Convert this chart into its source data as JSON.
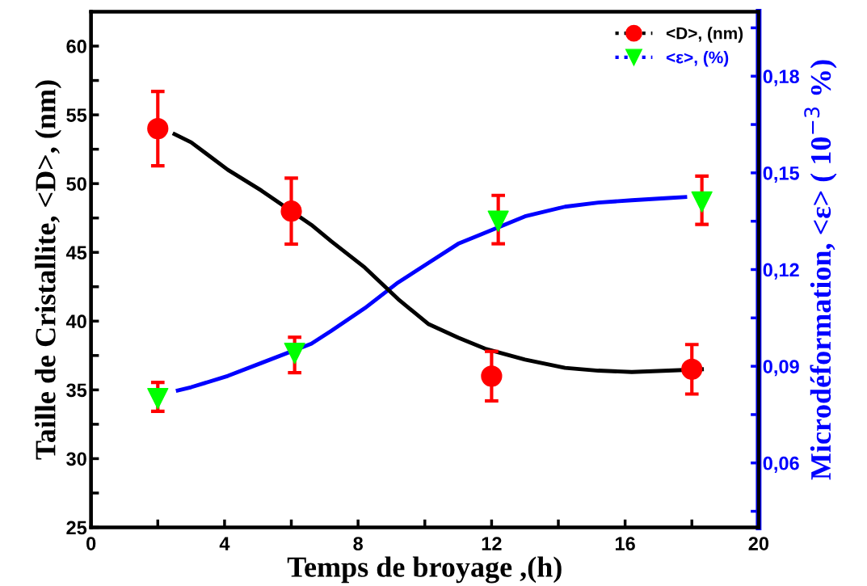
{
  "chart_data": {
    "type": "scatter",
    "xlabel": "Temps de broyage ,(h)",
    "ylabel": "Taille de Cristallite, <D>, (nm)",
    "y2label": "Microdéformation, <ε> ( 10$^{−3}$ %)",
    "xlim": [
      0,
      20
    ],
    "xticks": [
      0,
      {
        "value": 2,
        "label": null
      },
      4,
      {
        "value": 6,
        "label": null
      },
      8,
      {
        "value": 10,
        "label": null
      },
      12,
      {
        "value": 14,
        "label": null
      },
      16,
      {
        "value": 18,
        "label": null
      },
      20
    ],
    "ylim": [
      25,
      62.5
    ],
    "yticks": [
      25,
      {
        "value": 27.5,
        "label": null
      },
      30,
      {
        "value": 32.5,
        "label": null
      },
      35,
      {
        "value": 37.5,
        "label": null
      },
      40,
      {
        "value": 42.5,
        "label": null
      },
      45,
      {
        "value": 47.5,
        "label": null
      },
      50,
      {
        "value": 52.5,
        "label": null
      },
      55,
      {
        "value": 57.5,
        "label": null
      },
      60
    ],
    "y2lim": [
      0.04,
      0.2
    ],
    "y2ticks": [
      {
        "value": 0.045,
        "label": null
      },
      {
        "value": 0.06,
        "label": "0,06"
      },
      {
        "value": 0.075,
        "label": null
      },
      {
        "value": 0.09,
        "label": "0,09"
      },
      {
        "value": 0.105,
        "label": null
      },
      {
        "value": 0.12,
        "label": "0,12"
      },
      {
        "value": 0.135,
        "label": null
      },
      {
        "value": 0.15,
        "label": "0,15"
      },
      {
        "value": 0.165,
        "label": null
      },
      {
        "value": 0.18,
        "label": "0,18"
      },
      {
        "value": 0.195,
        "label": null
      }
    ],
    "legend": "top right",
    "grid": false,
    "series": [
      {
        "type": "line",
        "color": "#000000",
        "marker": "none",
        "x": [
          2.5,
          3,
          4.1,
          5.1,
          6.6,
          7.2,
          8.2,
          9.2,
          10.1,
          11,
          11.8,
          13,
          14.2,
          15.2,
          16.2,
          17.3,
          18.3
        ],
        "values": [
          53.6,
          53,
          51,
          49.5,
          47,
          45.8,
          43.9,
          41.6,
          39.8,
          38.8,
          38,
          37.2,
          36.6,
          36.4,
          36.3,
          36.4,
          36.5
        ]
      },
      {
        "type": "line",
        "axis": "y2",
        "color": "#0000ff",
        "marker": "none",
        "x": [
          2.6,
          3,
          4.1,
          5.1,
          6.6,
          7.2,
          8.2,
          9.2,
          10.1,
          11,
          11.7,
          13,
          14.2,
          15.2,
          16.2,
          17.3,
          17.8
        ],
        "values": [
          0.0825,
          0.0835,
          0.087,
          0.091,
          0.097,
          0.101,
          0.108,
          0.116,
          0.122,
          0.128,
          0.131,
          0.1365,
          0.1395,
          0.1408,
          0.1415,
          0.1422,
          0.1425
        ]
      },
      {
        "name": "<D>, (nm)",
        "color": "#ff0000",
        "marker": "circle",
        "x": [
          2,
          6,
          12,
          18
        ],
        "values": [
          54,
          48,
          36,
          36.5
        ],
        "errors": [
          [
            51.3,
            56.7
          ],
          [
            45.6,
            50.4
          ],
          [
            34.2,
            37.8
          ],
          [
            34.7,
            38.3
          ]
        ]
      },
      {
        "name": "<ε>, (%)",
        "axis": "y2",
        "color": "#00ff00",
        "marker": "triangle",
        "x": [
          2,
          6.1,
          12.2,
          18.3
        ],
        "values": [
          0.08,
          0.094,
          0.135,
          0.141
        ],
        "errors": [
          [
            0.076,
            0.085
          ],
          [
            0.088,
            0.099
          ],
          [
            0.128,
            0.143
          ],
          [
            0.134,
            0.149
          ]
        ]
      }
    ]
  }
}
